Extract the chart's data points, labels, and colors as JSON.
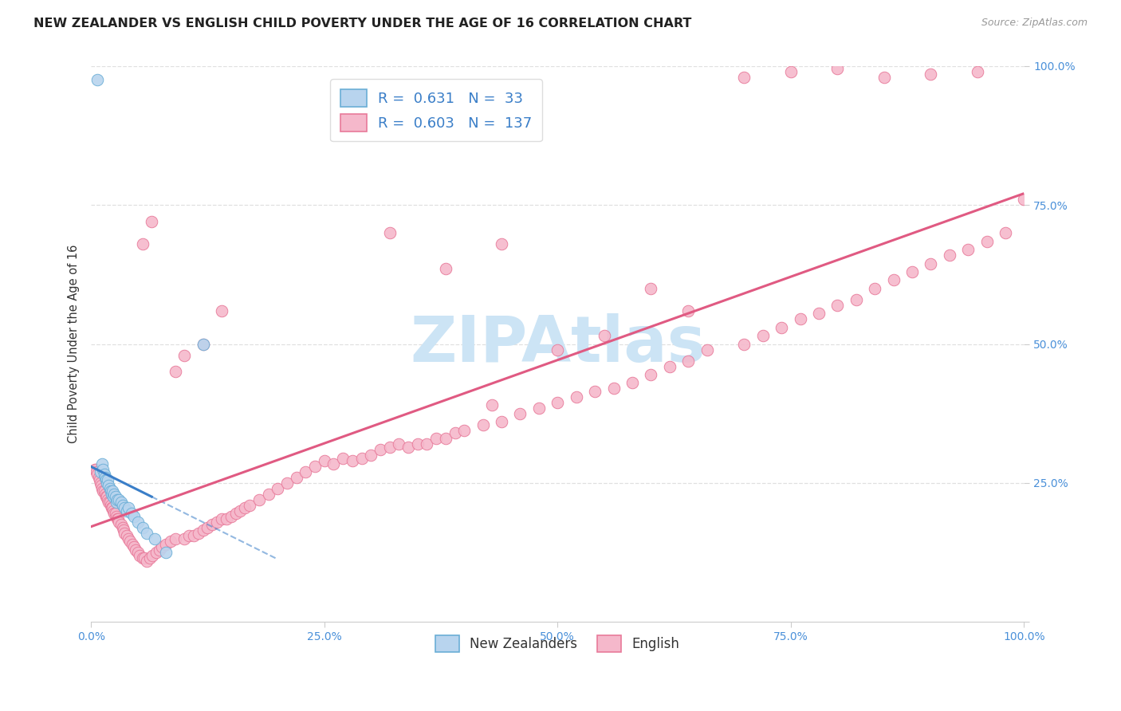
{
  "title": "NEW ZEALANDER VS ENGLISH CHILD POVERTY UNDER THE AGE OF 16 CORRELATION CHART",
  "source": "Source: ZipAtlas.com",
  "ylabel": "Child Poverty Under the Age of 16",
  "background_color": "#ffffff",
  "grid_color": "#e0e0e0",
  "nz_color": "#b8d4ee",
  "nz_edge_color": "#6aaed6",
  "nz_line_color": "#3a7ec8",
  "en_color": "#f5b8cb",
  "en_edge_color": "#e87a9a",
  "en_line_color": "#e05a82",
  "nz_R": 0.631,
  "nz_N": 33,
  "en_R": 0.603,
  "en_N": 137,
  "watermark_text": "ZIPAtlas",
  "watermark_color": "#cce4f5",
  "title_fontsize": 11.5,
  "label_fontsize": 10.5,
  "tick_fontsize": 10,
  "legend_fontsize": 13
}
